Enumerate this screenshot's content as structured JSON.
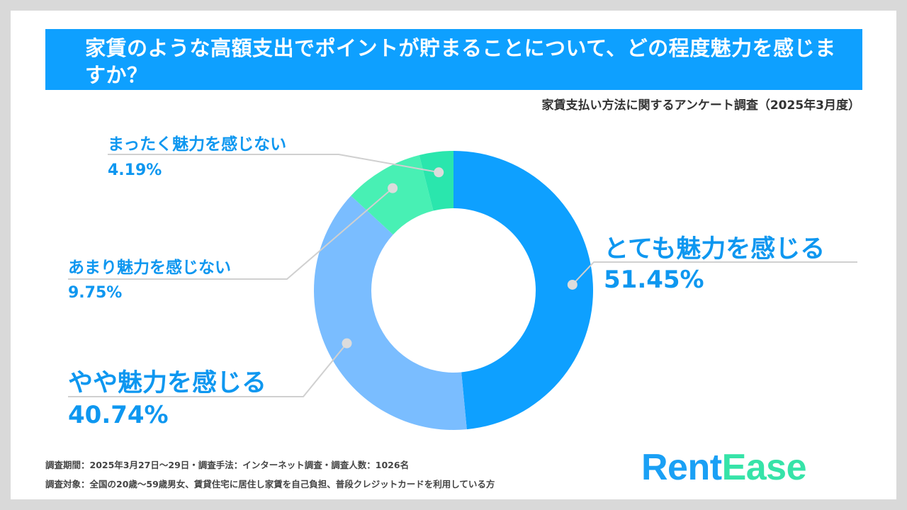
{
  "title": "家賃のような高額支出でポイントが貯まることについて、どの程度魅力を感じますか？",
  "subtitle": "家賃支払い方法に関するアンケート調査（2025年3月度）",
  "footnotes": [
    "調査期間：2025年3月27日～29日・調査手法：インターネット調査・調査人数：1026名",
    "調査対象：全国の20歳～59歳男女、賃貸住宅に居住し家賃を自己負担、普段クレジットカードを利用している方"
  ],
  "logo": {
    "part1": "Rent",
    "part2": "Ease"
  },
  "chart_data": {
    "type": "pie",
    "donut": true,
    "unit": "%",
    "slices": [
      {
        "label": "とても魅力を感じる",
        "value": 51.45,
        "display": "51.45%",
        "color": "#0ea0ff"
      },
      {
        "label": "やや魅力を感じる",
        "value": 40.74,
        "display": "40.74%",
        "color": "#7abdff"
      },
      {
        "label": "あまり魅力を感じない",
        "value": 9.75,
        "display": "9.75%",
        "color": "#48f0b4"
      },
      {
        "label": "まったく魅力を感じない",
        "value": 4.19,
        "display": "4.19%",
        "color": "#2ae6ad"
      }
    ]
  },
  "colors": {
    "accent": "#0ea0ff",
    "label_text": "#0e97f0",
    "leader_line": "#d0d0d0",
    "background": "#d9d9d9"
  }
}
